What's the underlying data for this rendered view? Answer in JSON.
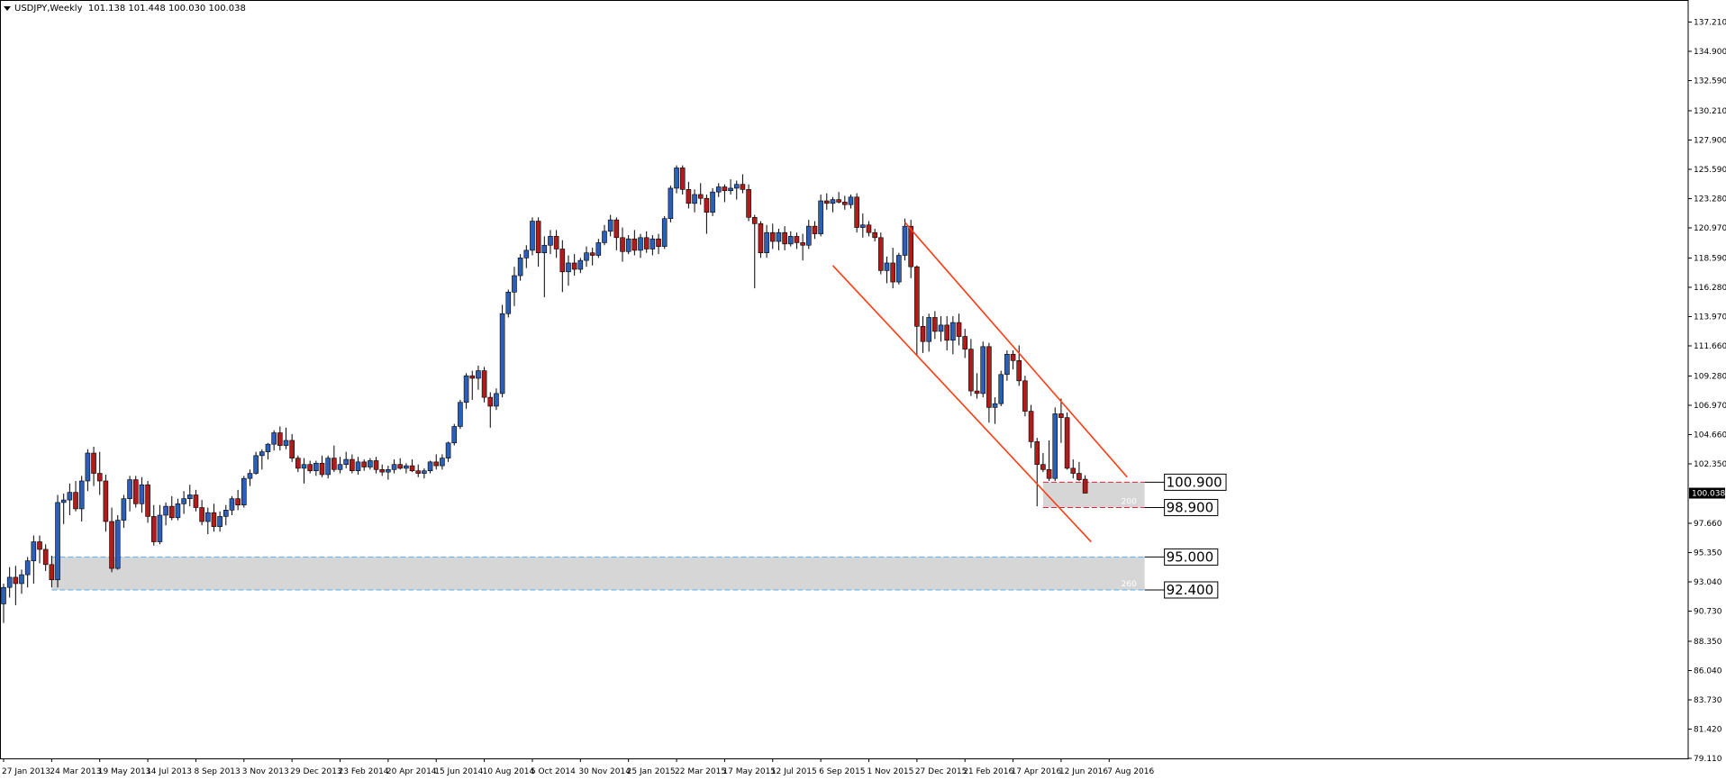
{
  "header": {
    "symbol": "USDJPY,Weekly",
    "ohlc": "101.138 101.448 100.030 100.038"
  },
  "colors": {
    "bull": "#2b5fb8",
    "bear": "#b01c1c",
    "wick": "#000000",
    "channel": "#ff3b12",
    "zone_fill": "#d6d6d6",
    "zone_line": "#58aef5",
    "zone2_line": "#e0253e"
  },
  "chart_data": {
    "type": "candlestick",
    "title": "USDJPY,Weekly",
    "ylim": [
      79.11,
      138.38
    ],
    "y_ticks": [
      137.21,
      134.9,
      132.59,
      130.21,
      127.9,
      125.59,
      123.28,
      120.97,
      118.59,
      116.28,
      113.97,
      111.66,
      109.28,
      106.97,
      104.66,
      102.35,
      97.66,
      95.35,
      93.04,
      90.73,
      88.35,
      86.04,
      83.73,
      81.42,
      79.11
    ],
    "x_labels": [
      "27 Jan 2013",
      "24 Mar 2013",
      "19 May 2013",
      "14 Jul 2013",
      "8 Sep 2013",
      "3 Nov 2013",
      "29 Dec 2013",
      "23 Feb 2014",
      "20 Apr 2014",
      "15 Jun 2014",
      "10 Aug 2014",
      "5 Oct 2014",
      "30 Nov 2014",
      "25 Jan 2015",
      "22 Mar 2015",
      "17 May 2015",
      "12 Jul 2015",
      "6 Sep 2015",
      "1 Nov 2015",
      "27 Dec 2015",
      "21 Feb 2016",
      "17 Apr 2016",
      "12 Jun 2016",
      "7 Aug 2016"
    ],
    "current_price": "100.038",
    "candles": [
      [
        91.3,
        92.9,
        89.8,
        92.6
      ],
      [
        92.6,
        94.2,
        91.8,
        93.4
      ],
      [
        93.4,
        94.3,
        91.2,
        92.9
      ],
      [
        92.9,
        94.0,
        92.1,
        93.6
      ],
      [
        93.6,
        95.0,
        92.6,
        94.7
      ],
      [
        94.7,
        96.7,
        92.9,
        96.2
      ],
      [
        96.2,
        96.7,
        94.5,
        95.6
      ],
      [
        95.6,
        96.0,
        93.9,
        94.4
      ],
      [
        94.4,
        95.1,
        92.6,
        93.2
      ],
      [
        93.2,
        99.9,
        92.6,
        99.3
      ],
      [
        99.3,
        100.0,
        97.6,
        99.5
      ],
      [
        99.5,
        100.8,
        98.3,
        100.1
      ],
      [
        100.1,
        101.0,
        98.6,
        98.8
      ],
      [
        98.8,
        101.4,
        97.8,
        101.0
      ],
      [
        101.0,
        103.5,
        100.2,
        103.2
      ],
      [
        103.2,
        103.7,
        100.6,
        101.6
      ],
      [
        101.6,
        103.3,
        99.9,
        101.0
      ],
      [
        101.0,
        101.5,
        97.0,
        97.8
      ],
      [
        97.8,
        98.9,
        93.8,
        94.1
      ],
      [
        94.1,
        98.3,
        94.0,
        97.9
      ],
      [
        97.9,
        99.9,
        97.3,
        99.6
      ],
      [
        99.6,
        101.4,
        98.6,
        101.1
      ],
      [
        101.1,
        101.4,
        98.9,
        99.2
      ],
      [
        99.2,
        101.3,
        98.5,
        100.7
      ],
      [
        100.7,
        101.0,
        97.7,
        98.2
      ],
      [
        98.2,
        99.1,
        95.9,
        96.2
      ],
      [
        96.2,
        99.1,
        96.0,
        98.3
      ],
      [
        98.3,
        99.3,
        97.5,
        99.0
      ],
      [
        99.0,
        99.8,
        97.9,
        98.1
      ],
      [
        98.1,
        99.6,
        97.9,
        99.2
      ],
      [
        99.2,
        100.2,
        98.4,
        99.6
      ],
      [
        99.6,
        100.7,
        99.0,
        99.9
      ],
      [
        99.9,
        100.3,
        98.6,
        98.9
      ],
      [
        98.9,
        99.5,
        97.5,
        97.8
      ],
      [
        97.8,
        98.9,
        96.8,
        98.5
      ],
      [
        98.5,
        99.2,
        97.0,
        97.4
      ],
      [
        97.4,
        98.6,
        97.0,
        98.2
      ],
      [
        98.2,
        99.1,
        97.5,
        98.7
      ],
      [
        98.7,
        99.8,
        98.3,
        99.6
      ],
      [
        99.6,
        100.3,
        98.7,
        99.1
      ],
      [
        99.1,
        101.4,
        98.9,
        101.2
      ],
      [
        101.2,
        101.9,
        100.6,
        101.6
      ],
      [
        101.6,
        103.3,
        101.5,
        103.0
      ],
      [
        103.0,
        103.5,
        101.9,
        103.3
      ],
      [
        103.3,
        104.0,
        102.7,
        103.9
      ],
      [
        103.9,
        105.0,
        103.4,
        104.8
      ],
      [
        104.8,
        105.3,
        103.4,
        103.8
      ],
      [
        103.8,
        105.2,
        103.5,
        104.2
      ],
      [
        104.2,
        104.7,
        102.5,
        102.8
      ],
      [
        102.8,
        103.0,
        101.7,
        102.0
      ],
      [
        102.0,
        102.8,
        100.8,
        102.3
      ],
      [
        102.3,
        102.6,
        101.6,
        101.8
      ],
      [
        101.8,
        102.6,
        101.4,
        102.4
      ],
      [
        102.4,
        103.0,
        101.3,
        101.5
      ],
      [
        101.5,
        103.0,
        101.2,
        102.8
      ],
      [
        102.8,
        103.8,
        101.7,
        101.9
      ],
      [
        101.9,
        102.9,
        101.6,
        102.3
      ],
      [
        102.3,
        103.3,
        102.0,
        102.7
      ],
      [
        102.7,
        103.1,
        101.6,
        101.8
      ],
      [
        101.8,
        102.9,
        101.5,
        102.5
      ],
      [
        102.5,
        102.7,
        101.8,
        102.1
      ],
      [
        102.1,
        102.8,
        101.9,
        102.6
      ],
      [
        102.6,
        102.9,
        101.6,
        101.9
      ],
      [
        101.9,
        102.3,
        101.4,
        101.7
      ],
      [
        101.7,
        102.2,
        101.1,
        101.9
      ],
      [
        101.9,
        102.7,
        101.6,
        102.3
      ],
      [
        102.3,
        102.8,
        101.9,
        102.0
      ],
      [
        102.0,
        102.4,
        101.6,
        102.2
      ],
      [
        102.2,
        102.7,
        101.7,
        101.8
      ],
      [
        101.8,
        102.3,
        101.3,
        101.6
      ],
      [
        101.6,
        102.0,
        101.2,
        101.8
      ],
      [
        101.8,
        102.6,
        101.6,
        102.5
      ],
      [
        102.5,
        103.1,
        101.9,
        102.2
      ],
      [
        102.2,
        103.1,
        101.9,
        102.8
      ],
      [
        102.8,
        104.1,
        102.5,
        104.0
      ],
      [
        104.0,
        105.5,
        103.8,
        105.3
      ],
      [
        105.3,
        107.4,
        105.1,
        107.2
      ],
      [
        107.2,
        109.5,
        106.7,
        109.3
      ],
      [
        109.3,
        109.7,
        107.4,
        109.1
      ],
      [
        109.1,
        110.1,
        108.2,
        109.7
      ],
      [
        109.7,
        110.0,
        107.2,
        107.6
      ],
      [
        107.6,
        108.0,
        105.2,
        106.9
      ],
      [
        106.9,
        108.3,
        106.6,
        107.9
      ],
      [
        107.9,
        114.9,
        107.6,
        114.2
      ],
      [
        114.2,
        116.1,
        113.9,
        115.9
      ],
      [
        115.9,
        117.9,
        114.8,
        117.2
      ],
      [
        117.2,
        118.9,
        116.8,
        118.6
      ],
      [
        118.6,
        119.6,
        117.8,
        119.2
      ],
      [
        119.2,
        121.8,
        118.8,
        121.5
      ],
      [
        121.5,
        121.8,
        117.9,
        119.0
      ],
      [
        119.0,
        120.3,
        115.5,
        119.6
      ],
      [
        119.6,
        120.8,
        118.9,
        120.3
      ],
      [
        120.3,
        120.8,
        118.6,
        119.3
      ],
      [
        119.3,
        120.0,
        115.9,
        117.5
      ],
      [
        117.5,
        118.8,
        116.4,
        118.2
      ],
      [
        118.2,
        118.9,
        117.2,
        117.7
      ],
      [
        117.7,
        118.6,
        117.4,
        118.4
      ],
      [
        118.4,
        119.5,
        117.9,
        119.0
      ],
      [
        119.0,
        119.4,
        118.0,
        118.8
      ],
      [
        118.8,
        120.1,
        118.6,
        119.8
      ],
      [
        119.8,
        121.2,
        119.6,
        120.7
      ],
      [
        120.7,
        122.0,
        120.3,
        121.6
      ],
      [
        121.6,
        121.8,
        119.2,
        120.2
      ],
      [
        120.2,
        121.0,
        118.3,
        119.1
      ],
      [
        119.1,
        120.4,
        118.9,
        120.1
      ],
      [
        120.1,
        120.8,
        118.8,
        119.2
      ],
      [
        119.2,
        120.5,
        118.6,
        120.2
      ],
      [
        120.2,
        120.7,
        119.0,
        119.3
      ],
      [
        119.3,
        120.4,
        118.8,
        120.1
      ],
      [
        120.1,
        120.5,
        118.9,
        119.5
      ],
      [
        119.5,
        121.9,
        119.3,
        121.7
      ],
      [
        121.7,
        124.3,
        121.4,
        124.1
      ],
      [
        124.1,
        125.9,
        123.7,
        125.7
      ],
      [
        125.7,
        125.9,
        123.6,
        124.0
      ],
      [
        124.0,
        124.6,
        122.5,
        122.9
      ],
      [
        122.9,
        124.0,
        122.2,
        123.6
      ],
      [
        123.6,
        124.5,
        122.8,
        123.3
      ],
      [
        123.3,
        123.6,
        120.5,
        122.2
      ],
      [
        122.2,
        124.1,
        121.9,
        123.8
      ],
      [
        123.8,
        124.5,
        123.4,
        124.2
      ],
      [
        124.2,
        124.4,
        123.0,
        123.9
      ],
      [
        123.9,
        124.8,
        123.6,
        124.1
      ],
      [
        124.1,
        124.7,
        123.2,
        124.4
      ],
      [
        124.4,
        125.2,
        123.7,
        124.0
      ],
      [
        124.0,
        124.4,
        121.5,
        121.8
      ],
      [
        121.8,
        122.0,
        116.2,
        121.3
      ],
      [
        121.3,
        121.5,
        118.6,
        119.0
      ],
      [
        119.0,
        121.2,
        118.6,
        120.6
      ],
      [
        120.6,
        121.3,
        119.3,
        119.9
      ],
      [
        119.9,
        120.9,
        119.2,
        120.6
      ],
      [
        120.6,
        121.1,
        119.2,
        119.7
      ],
      [
        119.7,
        120.7,
        119.5,
        120.3
      ],
      [
        120.3,
        120.6,
        119.3,
        119.8
      ],
      [
        119.8,
        120.5,
        118.4,
        119.6
      ],
      [
        119.6,
        121.6,
        119.3,
        121.1
      ],
      [
        121.1,
        121.5,
        120.1,
        120.5
      ],
      [
        120.5,
        123.6,
        120.3,
        123.1
      ],
      [
        123.1,
        123.7,
        122.4,
        122.9
      ],
      [
        122.9,
        123.4,
        122.2,
        123.2
      ],
      [
        123.2,
        123.8,
        122.9,
        123.0
      ],
      [
        123.0,
        123.5,
        122.4,
        122.8
      ],
      [
        122.8,
        123.6,
        122.5,
        123.4
      ],
      [
        123.4,
        123.7,
        120.6,
        121.0
      ],
      [
        121.0,
        122.1,
        120.2,
        121.2
      ],
      [
        121.2,
        121.5,
        120.3,
        120.6
      ],
      [
        120.6,
        120.9,
        119.9,
        120.2
      ],
      [
        120.2,
        120.6,
        117.3,
        117.6
      ],
      [
        117.6,
        118.7,
        116.6,
        118.2
      ],
      [
        118.2,
        119.4,
        116.2,
        116.7
      ],
      [
        116.7,
        119.0,
        116.5,
        118.8
      ],
      [
        118.8,
        121.7,
        118.4,
        121.1
      ],
      [
        121.1,
        121.6,
        117.0,
        117.9
      ],
      [
        117.9,
        118.0,
        110.9,
        113.2
      ],
      [
        113.2,
        114.0,
        111.1,
        112.0
      ],
      [
        112.0,
        114.2,
        111.2,
        113.9
      ],
      [
        113.9,
        114.4,
        112.2,
        112.8
      ],
      [
        112.8,
        114.0,
        112.0,
        113.3
      ],
      [
        113.3,
        114.0,
        111.3,
        112.1
      ],
      [
        112.1,
        114.0,
        111.0,
        113.5
      ],
      [
        113.5,
        114.2,
        111.7,
        112.4
      ],
      [
        112.4,
        113.0,
        110.7,
        111.4
      ],
      [
        111.4,
        112.2,
        107.7,
        108.1
      ],
      [
        108.1,
        109.5,
        107.5,
        107.9
      ],
      [
        107.9,
        112.0,
        107.6,
        111.6
      ],
      [
        111.6,
        111.9,
        105.6,
        106.8
      ],
      [
        106.8,
        107.6,
        105.5,
        107.1
      ],
      [
        107.1,
        109.7,
        106.9,
        109.4
      ],
      [
        109.4,
        111.3,
        108.9,
        111.0
      ],
      [
        111.0,
        111.3,
        109.8,
        110.5
      ],
      [
        110.5,
        111.7,
        108.5,
        108.9
      ],
      [
        108.9,
        109.3,
        106.1,
        106.5
      ],
      [
        106.5,
        107.0,
        103.6,
        104.1
      ],
      [
        104.1,
        104.4,
        99.0,
        102.3
      ],
      [
        102.3,
        103.2,
        101.7,
        101.9
      ],
      [
        101.9,
        104.2,
        101.0,
        101.2
      ],
      [
        101.2,
        106.8,
        101.0,
        106.3
      ],
      [
        106.3,
        107.5,
        104.0,
        106.0
      ],
      [
        106.0,
        106.4,
        101.9,
        102.0
      ],
      [
        102.0,
        102.7,
        101.2,
        101.6
      ],
      [
        101.6,
        102.5,
        101.0,
        101.1
      ],
      [
        101.138,
        101.448,
        100.03,
        100.038
      ]
    ],
    "channel_lines": [
      {
        "from": [
          150,
          121.4
        ],
        "to": [
          187,
          101.3
        ]
      },
      {
        "from": [
          138,
          118.0
        ],
        "to": [
          181,
          96.2
        ]
      }
    ],
    "zones": [
      {
        "start_index": 173,
        "end_index": 189,
        "top": 100.9,
        "bottom": 98.9,
        "edge": "zone2_line",
        "tag": "200"
      },
      {
        "start_index": 8,
        "end_index": 189,
        "top": 95.0,
        "bottom": 92.4,
        "edge": "zone_line",
        "tag": "260"
      }
    ],
    "level_labels": [
      "100.900",
      "98.900",
      "95.000",
      "92.400"
    ]
  }
}
